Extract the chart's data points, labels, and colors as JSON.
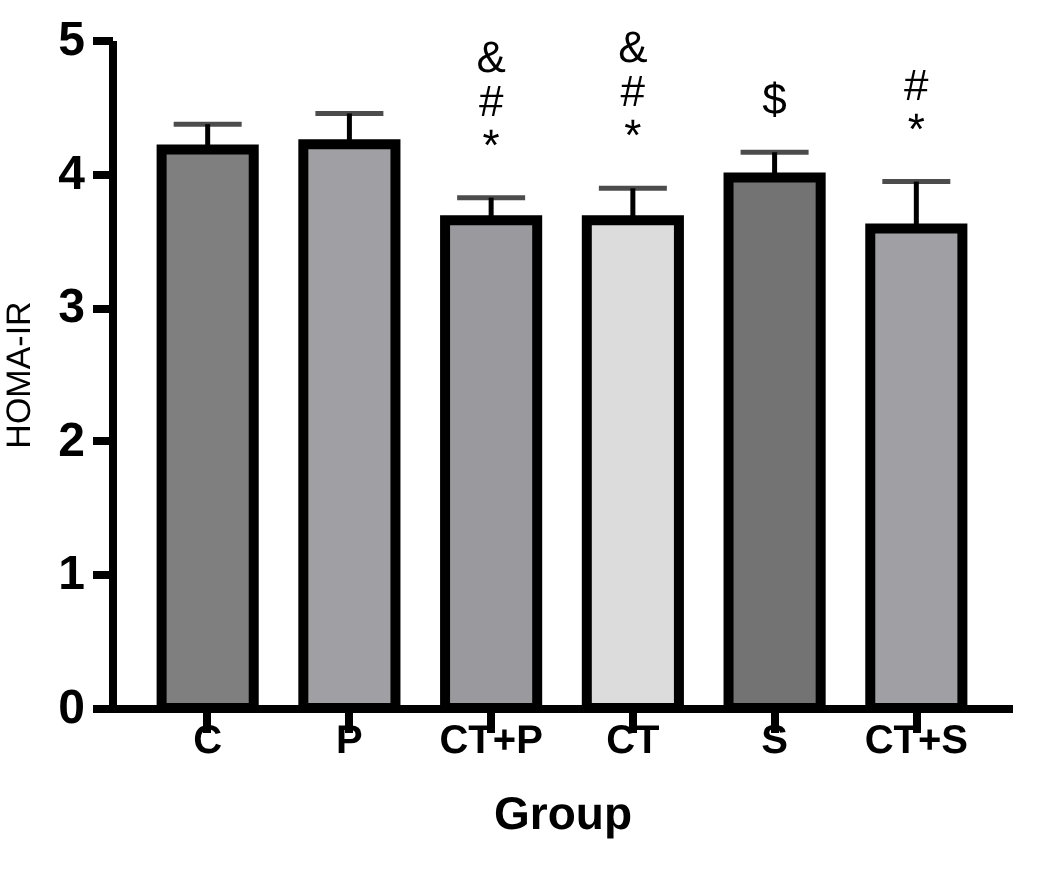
{
  "chart_data": {
    "type": "bar",
    "xlabel": "Group",
    "ylabel": "HOMA-IR",
    "categories": [
      "C",
      "P",
      "CT+P",
      "CT",
      "S",
      "CT+S"
    ],
    "values": [
      4.18,
      4.22,
      3.65,
      3.65,
      3.97,
      3.59
    ],
    "errors": [
      0.19,
      0.23,
      0.17,
      0.24,
      0.19,
      0.35
    ],
    "colors": [
      "#7f7f7f",
      "#a0a0a4",
      "#9a9a9e",
      "#dcdcdc",
      "#737373",
      "#a0a0a4"
    ],
    "ylim": [
      0,
      5
    ],
    "yticks": [
      0,
      1,
      2,
      3,
      4,
      5
    ],
    "grid": false,
    "legend": false,
    "annotations": [
      {
        "text": "&\n#\n*",
        "x": "CT+P",
        "y": 3.82
      },
      {
        "text": "&\n#\n*",
        "x": "CT",
        "y": 3.89
      },
      {
        "text": "$",
        "x": "S",
        "y": 4.16
      },
      {
        "text": "#\n*",
        "x": "CT+S",
        "y": 3.94
      }
    ]
  }
}
